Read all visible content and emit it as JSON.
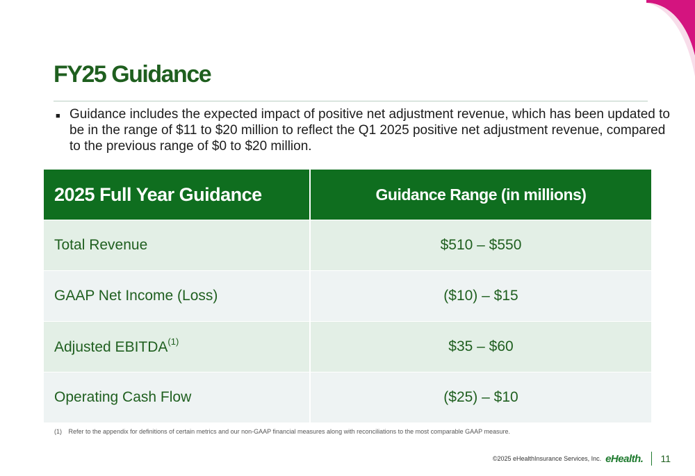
{
  "slide": {
    "title": "FY25 Guidance",
    "bullet": "Guidance includes the expected impact of positive net adjustment revenue, which has been updated to be in the range of $11 to $20 million to reflect the Q1 2025 positive net adjustment revenue, compared to the previous range of $0 to $20 million."
  },
  "table": {
    "header_metric": "2025 Full Year Guidance",
    "header_range": "Guidance Range (in millions)",
    "rows": [
      {
        "metric": "Total Revenue",
        "range": "$510 – $550"
      },
      {
        "metric": "GAAP Net Income (Loss)",
        "range": "($10) – $15"
      },
      {
        "metric": "Adjusted EBITDA",
        "footnote_ref": "(1)",
        "range": "$35 – $60"
      },
      {
        "metric": "Operating Cash Flow",
        "range": "($25) – $10"
      }
    ]
  },
  "footnote": {
    "number": "(1)",
    "text": "Refer to the appendix for definitions of certain metrics and our non-GAAP financial measures along with reconciliations to the most comparable GAAP measure."
  },
  "footer": {
    "copyright": "©2025 eHealthInsurance Services, Inc.",
    "logo": "eHealth.",
    "page_number": "11"
  },
  "colors": {
    "brand_green": "#0f6e1f",
    "title_green": "#1f5f1f",
    "accent_magenta": "#d4147f"
  }
}
